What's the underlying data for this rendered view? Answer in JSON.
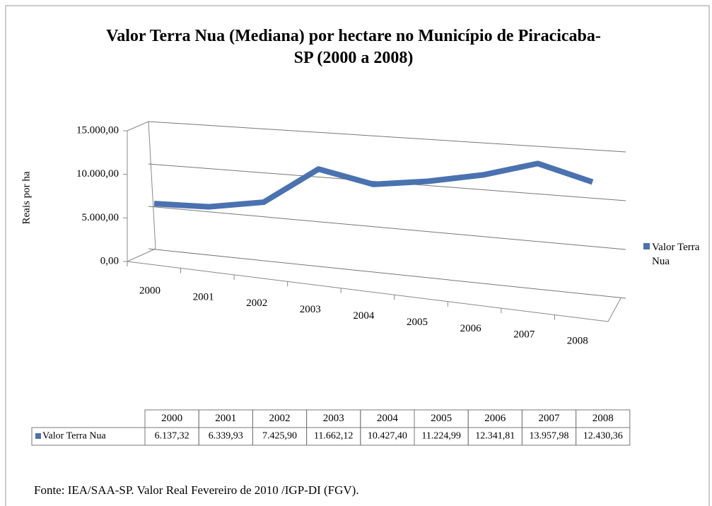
{
  "chart_data": {
    "type": "line",
    "title": "Valor Terra Nua (Mediana) por hectare no Município de Piracicaba-SP (2000 a 2008)",
    "ylabel": "Reais por ha",
    "categories": [
      "2000",
      "2001",
      "2002",
      "2003",
      "2004",
      "2005",
      "2006",
      "2007",
      "2008"
    ],
    "series": [
      {
        "name": "Valor Terra Nua",
        "color": "#4a72b0",
        "values": [
          6137.32,
          6339.93,
          7425.9,
          11662.12,
          10427.4,
          11224.99,
          12341.81,
          13957.98,
          12430.36
        ],
        "value_labels": [
          "6.137,32",
          "6.339,93",
          "7.425,90",
          "11.662,12",
          "10.427,40",
          "11.224,99",
          "12.341,81",
          "13.957,98",
          "12.430,36"
        ]
      }
    ],
    "ylim": [
      0,
      15000
    ],
    "yticks": [
      {
        "value": 0,
        "label": "0,00"
      },
      {
        "value": 5000,
        "label": "5.000,00"
      },
      {
        "value": 10000,
        "label": "10.000,00"
      },
      {
        "value": 15000,
        "label": "15.000,00"
      }
    ],
    "grid": true,
    "legend": "right",
    "source": "Fonte: IEA/SAA-SP. Valor Real Fevereiro de 2010 /IGP-DI (FGV)."
  }
}
